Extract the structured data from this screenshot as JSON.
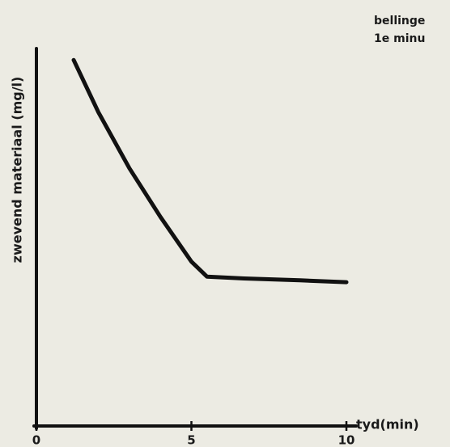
{
  "chart_data": {
    "type": "line",
    "xlabel": "tyd(min)",
    "ylabel": "zwevend materiaal (mg/l)",
    "annotations": [
      "bellinge",
      "1e minu"
    ],
    "x": [
      1.2,
      2.0,
      3.0,
      4.0,
      5.0,
      5.5,
      6.7,
      8.5,
      10.0
    ],
    "series": [
      {
        "color": "#111111",
        "values": [
          98,
          84,
          69,
          56,
          44,
          40,
          39.5,
          39,
          38.5
        ]
      }
    ],
    "xlim": [
      0,
      10
    ],
    "xticks": [
      0,
      5,
      10
    ],
    "ylim": [
      0,
      100
    ]
  }
}
